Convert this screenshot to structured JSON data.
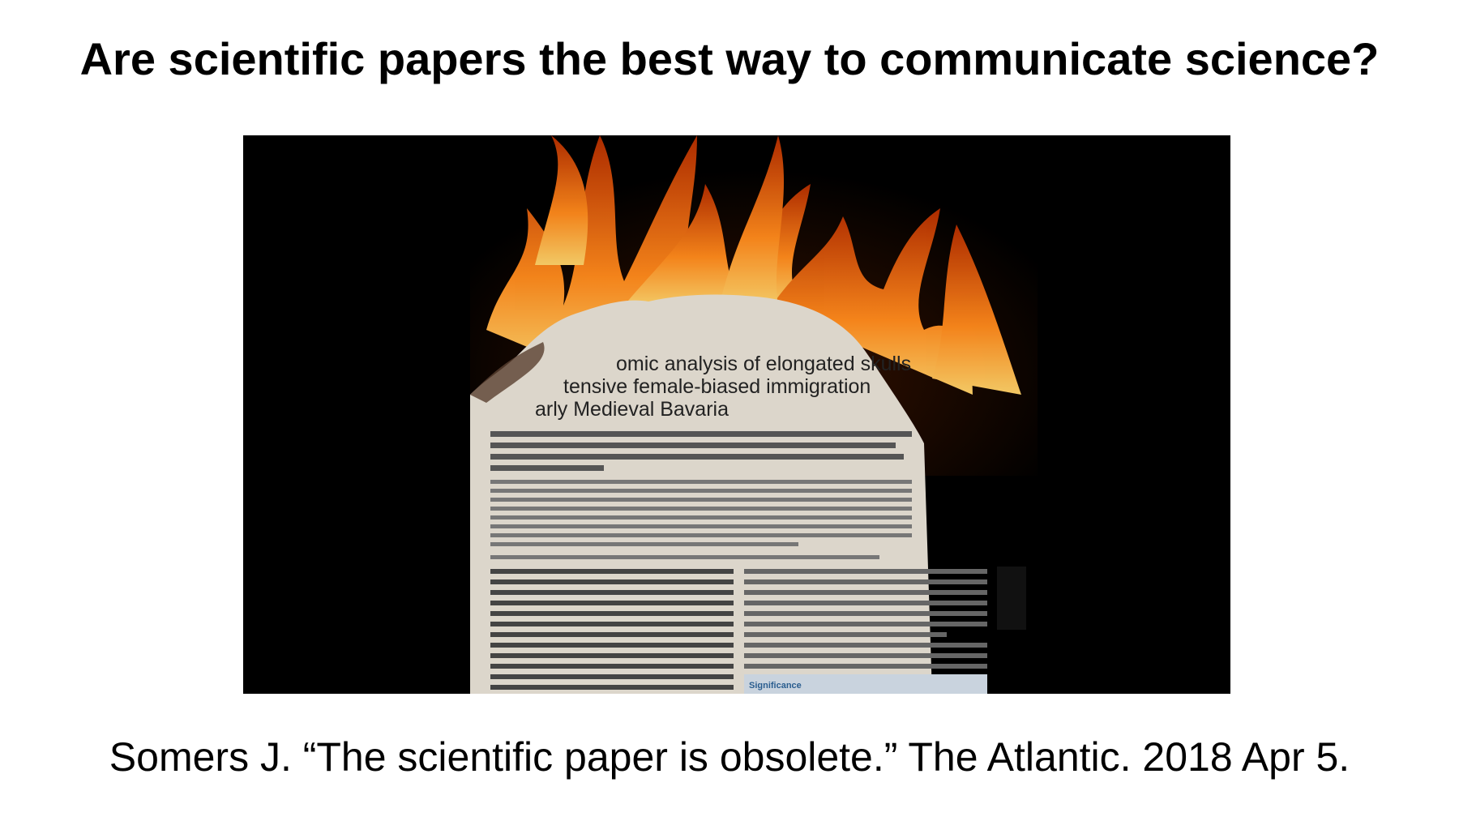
{
  "slide": {
    "title": "Are scientific papers the best way to communicate science?",
    "image": {
      "paper_title_lines": [
        "omic analysis of elongated skulls",
        "tensive female-biased immigration",
        "arly Medieval Bavaria"
      ],
      "section_label": "Significance"
    },
    "citation": "Somers J. “The scientific paper is obsolete.” The Atlantic. 2018 Apr 5."
  }
}
